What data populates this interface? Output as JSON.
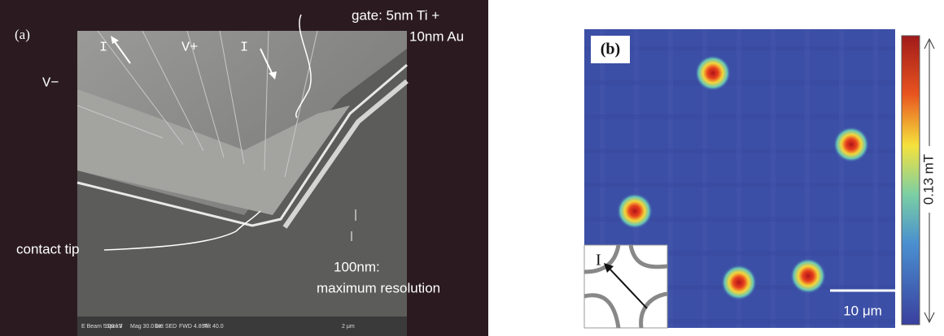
{
  "panel_a": {
    "label": "(a)",
    "gate_label": [
      "gate: 5nm Ti +",
      "10nm Au"
    ],
    "terminals": [
      "I",
      "V+",
      "I",
      "V−"
    ],
    "contact_label": "contact tip",
    "resolution_label": [
      "100nm:",
      "maximum resolution"
    ],
    "sem_footer": [
      "E Beam 5.00 kV",
      "Spot 3",
      "Mag 30.0 kX",
      "Det SED",
      "FWD 4.894",
      "Tilt 40.0",
      "2 µm"
    ]
  },
  "panel_b": {
    "label": "(b)",
    "colorbar_label": "0.13 mT",
    "scale_bar": "10 μm",
    "inset_label": "I"
  }
}
